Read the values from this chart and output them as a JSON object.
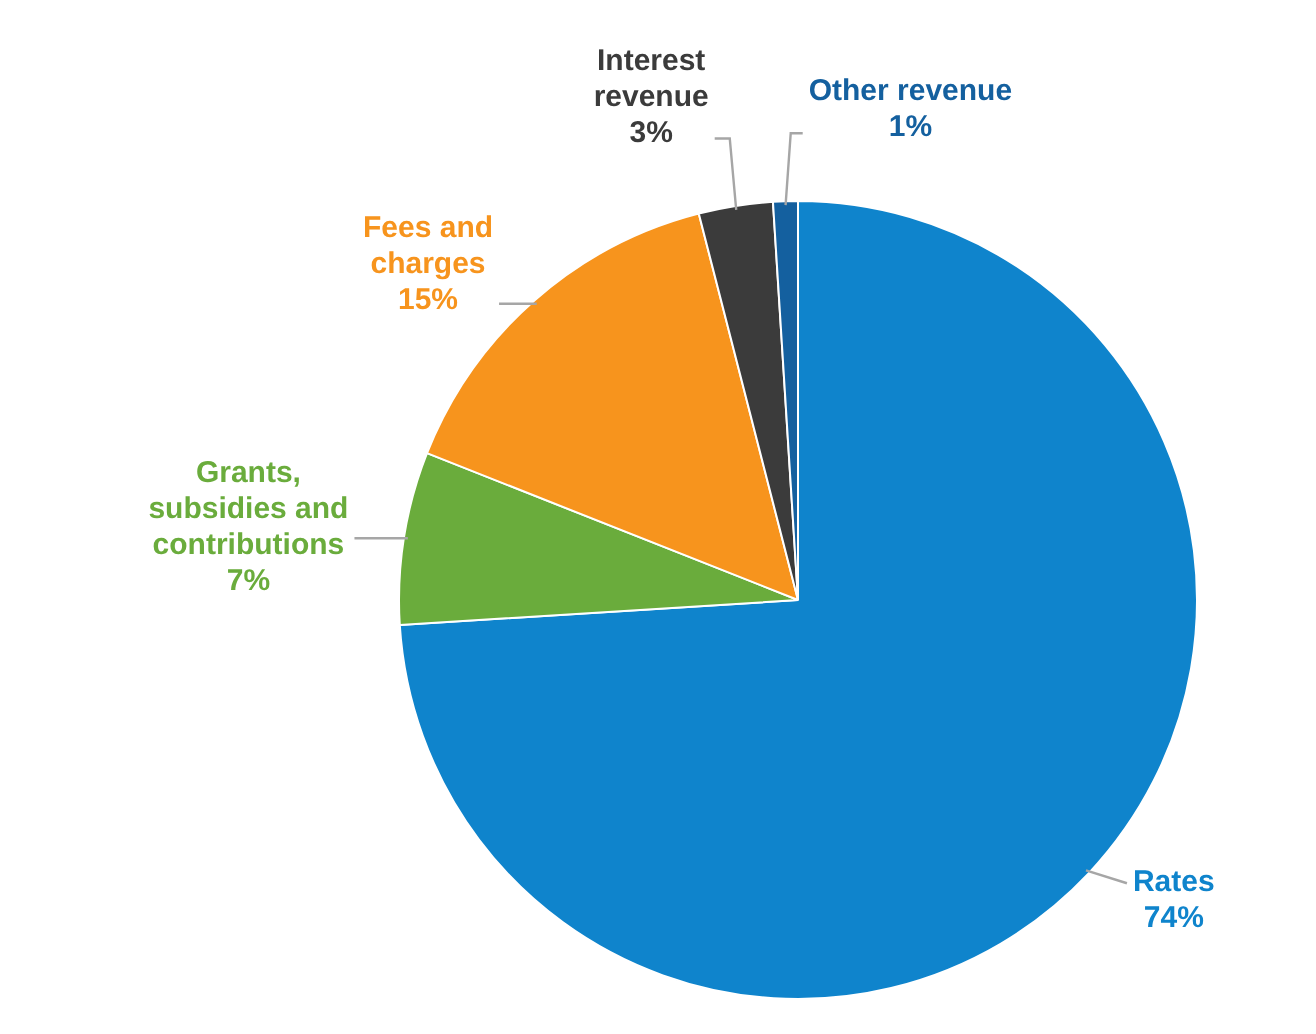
{
  "chart_data": {
    "type": "pie",
    "categories": [
      "Rates",
      "Grants, subsidies and contributions",
      "Fees and charges",
      "Interest revenue",
      "Other revenue"
    ],
    "values": [
      74,
      7,
      15,
      3,
      1
    ],
    "value_labels": [
      "74%",
      "7%",
      "15%",
      "3%",
      "1%"
    ],
    "colors": [
      "#0f84cc",
      "#6aac3c",
      "#f7941d",
      "#3b3b3b",
      "#14609f"
    ]
  }
}
